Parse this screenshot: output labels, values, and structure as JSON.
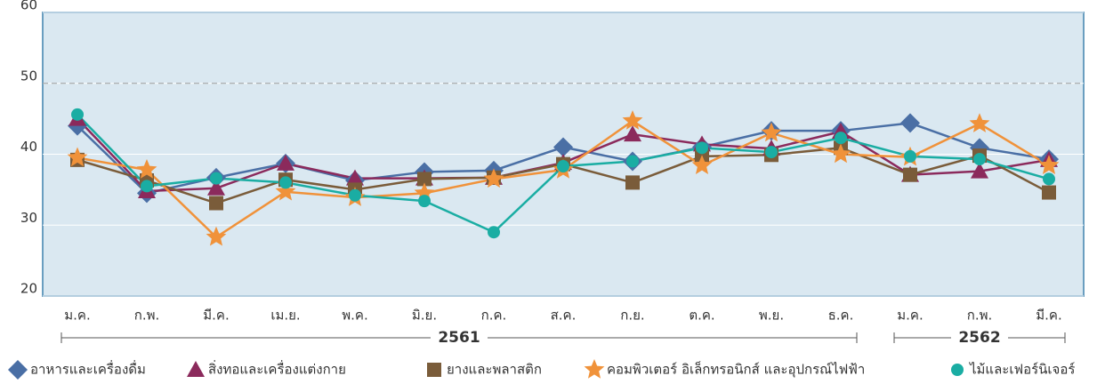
{
  "chart_data": {
    "type": "line",
    "categories": [
      "ม.ค.",
      "ก.พ.",
      "มี.ค.",
      "เม.ย.",
      "พ.ค.",
      "มิ.ย.",
      "ก.ค.",
      "ส.ค.",
      "ก.ย.",
      "ต.ค.",
      "พ.ย.",
      "ธ.ค.",
      "ม.ค.",
      "ก.พ.",
      "มี.ค."
    ],
    "years": [
      {
        "label": "2561",
        "months": 12
      },
      {
        "label": "2562",
        "months": 3
      }
    ],
    "ylim": [
      20,
      60
    ],
    "yticks": [
      20,
      30,
      40,
      50,
      60
    ],
    "reference_line": 50,
    "series": [
      {
        "name": "อาหารและเครื่องดื่ม",
        "color": "#4a6fa5",
        "marker": "diamond",
        "values": [
          44,
          34.5,
          36.7,
          38.7,
          36.3,
          37.5,
          37.7,
          41,
          39,
          41,
          43.3,
          43.3,
          44.4,
          40.9,
          39.3
        ]
      },
      {
        "name": "สิ่งทอและเครื่องแต่งกาย",
        "color": "#8b2a5c",
        "marker": "triangle",
        "values": [
          45,
          34.8,
          35.2,
          38.7,
          36.6,
          36.6,
          36.7,
          38.8,
          42.8,
          41.4,
          40.8,
          43.2,
          37.1,
          37.6,
          39.2
        ]
      },
      {
        "name": "ยางและพลาสติก",
        "color": "#7a5c3a",
        "marker": "square",
        "values": [
          39.2,
          36.3,
          33.1,
          36.4,
          35,
          36.5,
          36.7,
          38.6,
          36,
          39.7,
          39.9,
          40.9,
          37.1,
          39.8,
          34.6
        ]
      },
      {
        "name": "คอมพิวเตอร์ อิเล็กทรอนิกส์ และอุปกรณ์ไฟฟ้า",
        "color": "#f0923a",
        "marker": "star",
        "values": [
          39.5,
          37.8,
          28.3,
          34.7,
          33.9,
          34.5,
          36.5,
          37.8,
          44.7,
          38.4,
          43,
          40,
          39.6,
          44.3,
          38.4
        ]
      },
      {
        "name": "ไม้และเฟอร์นิเจอร์",
        "color": "#1aada3",
        "marker": "circle",
        "values": [
          45.6,
          35.5,
          36.6,
          36,
          34.2,
          33.4,
          29,
          38.3,
          39,
          40.9,
          40.3,
          42.3,
          39.7,
          39.3,
          36.5
        ]
      }
    ]
  }
}
